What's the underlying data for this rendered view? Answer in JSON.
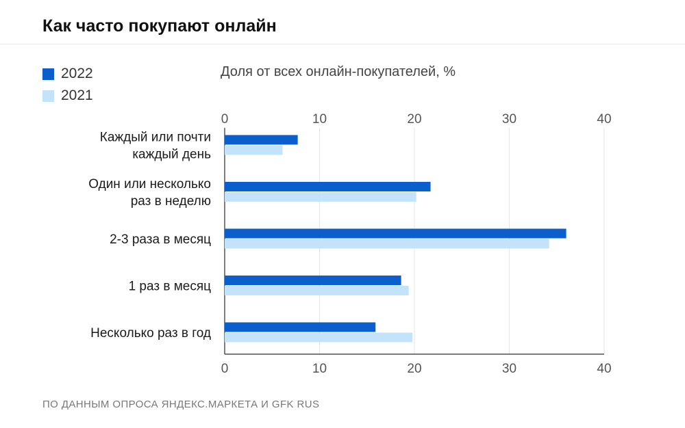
{
  "title": "Как часто покупают онлайн",
  "subtitle": "Доля от всех онлайн-покупателей, %",
  "source": "ПО ДАННЫМ ОПРОСА ЯНДЕКС.МАРКЕТА И GFK RUS",
  "colors": {
    "s2022": "#0a5fcc",
    "s2021": "#c3e3fb",
    "grid": "#e6e6e6",
    "axis": "#2a2a2a"
  },
  "chart_data": {
    "type": "bar",
    "orientation": "horizontal",
    "categories": [
      [
        "Каждый или почти",
        "каждый день"
      ],
      [
        "Один или несколько",
        "раз в неделю"
      ],
      [
        "2-3 раза в месяц"
      ],
      [
        "1 раз в месяц"
      ],
      [
        "Несколько раз в год"
      ]
    ],
    "series": [
      {
        "name": "2022",
        "values": [
          7.7,
          21.7,
          36.0,
          18.6,
          15.9
        ]
      },
      {
        "name": "2021",
        "values": [
          6.1,
          20.2,
          34.2,
          19.4,
          19.8
        ]
      }
    ],
    "xlim": [
      0,
      40
    ],
    "ticks": [
      "0",
      "10",
      "20",
      "30",
      "40"
    ],
    "grid": true,
    "legend_position": "top-left"
  }
}
